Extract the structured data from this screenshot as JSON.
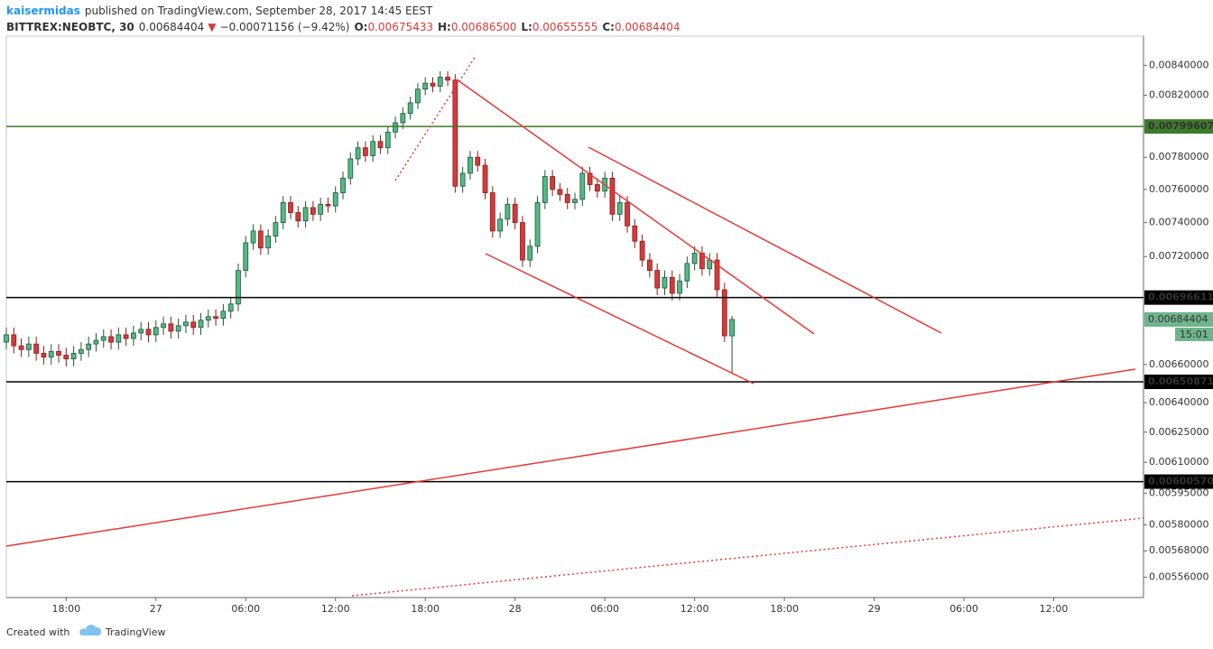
{
  "header": {
    "author": "kaisermidas",
    "published": "published on TradingView.com, September 28, 2017 14:45 EEST",
    "symbol": "BITTREX:NEOBTC, 30",
    "last": "0.00684404",
    "change": "−0.00071156 (−9.42%)",
    "o_label": "O:",
    "o": "0.00675433",
    "h_label": "H:",
    "h": "0.00686500",
    "l_label": "L:",
    "l": "0.00655555",
    "c_label": "C:",
    "c": "0.00684404"
  },
  "chart_data": {
    "type": "candlestick",
    "log_scale": true,
    "grid": false,
    "xlim": [
      0,
      152
    ],
    "xticks": [
      {
        "value": 8,
        "label": "18:00"
      },
      {
        "value": 20,
        "label": "27"
      },
      {
        "value": 32,
        "label": "06:00"
      },
      {
        "value": 44,
        "label": "12:00"
      },
      {
        "value": 56,
        "label": "18:00"
      },
      {
        "value": 68,
        "label": "28"
      },
      {
        "value": 80,
        "label": "06:00"
      },
      {
        "value": 92,
        "label": "12:00"
      },
      {
        "value": 104,
        "label": "18:00"
      },
      {
        "value": 116,
        "label": "29"
      },
      {
        "value": 128,
        "label": "06:00"
      },
      {
        "value": 140,
        "label": "12:00"
      }
    ],
    "ylim": [
      0.00547,
      0.0086
    ],
    "yticks": [
      {
        "value": 0.0084,
        "label": "0.00840000"
      },
      {
        "value": 0.0082,
        "label": "0.00820000"
      },
      {
        "value": 0.0078,
        "label": "0.00780000"
      },
      {
        "value": 0.0076,
        "label": "0.00760000"
      },
      {
        "value": 0.0074,
        "label": "0.00740000"
      },
      {
        "value": 0.0072,
        "label": "0.00720000"
      },
      {
        "value": 0.0066,
        "label": "0.00660000"
      },
      {
        "value": 0.0064,
        "label": "0.00640000"
      },
      {
        "value": 0.00625,
        "label": "0.00625000"
      },
      {
        "value": 0.0061,
        "label": "0.00610000"
      },
      {
        "value": 0.00595,
        "label": "0.00595000"
      },
      {
        "value": 0.0058,
        "label": "0.00580000"
      },
      {
        "value": 0.00568,
        "label": "0.00568000"
      },
      {
        "value": 0.00556,
        "label": "0.00556000"
      }
    ],
    "up_color": "#53b987",
    "down_color": "#d23c3c",
    "open": [
      0.00672,
      0.00676,
      0.0067,
      0.00668,
      0.00671,
      0.00666,
      0.00664,
      0.00667,
      0.00665,
      0.00663,
      0.00666,
      0.00668,
      0.00671,
      0.00673,
      0.00675,
      0.00672,
      0.00676,
      0.00674,
      0.00677,
      0.00679,
      0.00676,
      0.0068,
      0.00682,
      0.00678,
      0.00681,
      0.00683,
      0.0068,
      0.00684,
      0.00686,
      0.00685,
      0.00689,
      0.00693,
      0.00712,
      0.00728,
      0.00735,
      0.00725,
      0.00732,
      0.0074,
      0.00752,
      0.00746,
      0.00741,
      0.00749,
      0.00745,
      0.00751,
      0.0075,
      0.00758,
      0.00767,
      0.00779,
      0.00786,
      0.00781,
      0.0079,
      0.00786,
      0.00796,
      0.00802,
      0.00808,
      0.00815,
      0.00824,
      0.00828,
      0.00826,
      0.00832,
      0.0083,
      0.00762,
      0.0077,
      0.0078,
      0.00775,
      0.00758,
      0.00735,
      0.00742,
      0.00751,
      0.0074,
      0.00718,
      0.00726,
      0.00752,
      0.00768,
      0.0076,
      0.00757,
      0.00752,
      0.00754,
      0.0077,
      0.00763,
      0.00759,
      0.00767,
      0.00745,
      0.00752,
      0.00738,
      0.00729,
      0.00718,
      0.00712,
      0.00702,
      0.00708,
      0.00699,
      0.00706,
      0.00716,
      0.00722,
      0.00713,
      0.00718,
      0.00701,
      0.00675433
    ],
    "high": [
      0.0068,
      0.0068,
      0.00674,
      0.00675,
      0.00675,
      0.0067,
      0.00671,
      0.00671,
      0.00669,
      0.0067,
      0.00672,
      0.00675,
      0.00677,
      0.00679,
      0.00679,
      0.0068,
      0.0068,
      0.00681,
      0.00683,
      0.00683,
      0.00684,
      0.00686,
      0.00686,
      0.00685,
      0.00687,
      0.00687,
      0.00688,
      0.0069,
      0.0069,
      0.00693,
      0.00697,
      0.00716,
      0.00732,
      0.00739,
      0.00739,
      0.00736,
      0.00744,
      0.00756,
      0.00756,
      0.0075,
      0.00753,
      0.00753,
      0.00755,
      0.00755,
      0.00762,
      0.00771,
      0.00783,
      0.0079,
      0.0079,
      0.00794,
      0.00794,
      0.008,
      0.00806,
      0.00812,
      0.00819,
      0.00828,
      0.00832,
      0.00832,
      0.00836,
      0.00836,
      0.00834,
      0.00774,
      0.00784,
      0.00784,
      0.00779,
      0.00762,
      0.00746,
      0.00755,
      0.00755,
      0.00744,
      0.0073,
      0.00756,
      0.00772,
      0.00772,
      0.00764,
      0.00761,
      0.00758,
      0.00774,
      0.00774,
      0.00767,
      0.00771,
      0.00771,
      0.00756,
      0.00756,
      0.00742,
      0.00733,
      0.00722,
      0.00716,
      0.00712,
      0.00712,
      0.0071,
      0.0072,
      0.00726,
      0.00726,
      0.00722,
      0.00722,
      0.00705,
      0.006865
    ],
    "low": [
      0.00668,
      0.00666,
      0.00664,
      0.00664,
      0.00662,
      0.0066,
      0.0066,
      0.00661,
      0.00659,
      0.00659,
      0.00662,
      0.00664,
      0.00667,
      0.00669,
      0.00668,
      0.00668,
      0.0067,
      0.0067,
      0.00673,
      0.00672,
      0.00672,
      0.00676,
      0.00674,
      0.00674,
      0.00677,
      0.00676,
      0.00676,
      0.0068,
      0.00681,
      0.00681,
      0.00685,
      0.00689,
      0.00708,
      0.00724,
      0.00721,
      0.00721,
      0.00728,
      0.00736,
      0.00742,
      0.00737,
      0.00737,
      0.00741,
      0.00741,
      0.00746,
      0.00746,
      0.00754,
      0.00763,
      0.00775,
      0.00777,
      0.00777,
      0.00782,
      0.00782,
      0.00792,
      0.00798,
      0.00804,
      0.00811,
      0.0082,
      0.00822,
      0.00822,
      0.00826,
      0.00758,
      0.00758,
      0.00766,
      0.00771,
      0.00754,
      0.00731,
      0.00731,
      0.00738,
      0.00736,
      0.00714,
      0.00714,
      0.00722,
      0.00748,
      0.00756,
      0.00753,
      0.00748,
      0.00748,
      0.0075,
      0.00759,
      0.00755,
      0.00755,
      0.00741,
      0.00741,
      0.00734,
      0.00725,
      0.00714,
      0.00708,
      0.00698,
      0.00698,
      0.00695,
      0.00695,
      0.00702,
      0.00712,
      0.00709,
      0.00709,
      0.00697,
      0.00672,
      0.00655555
    ],
    "close": [
      0.00676,
      0.0067,
      0.00668,
      0.00671,
      0.00666,
      0.00664,
      0.00667,
      0.00665,
      0.00663,
      0.00666,
      0.00668,
      0.00671,
      0.00673,
      0.00675,
      0.00672,
      0.00676,
      0.00674,
      0.00677,
      0.00679,
      0.00676,
      0.0068,
      0.00682,
      0.00678,
      0.00681,
      0.00683,
      0.0068,
      0.00684,
      0.00686,
      0.00685,
      0.00689,
      0.00693,
      0.00712,
      0.00728,
      0.00735,
      0.00725,
      0.00732,
      0.0074,
      0.00752,
      0.00746,
      0.00741,
      0.00749,
      0.00745,
      0.00751,
      0.0075,
      0.00758,
      0.00767,
      0.00779,
      0.00786,
      0.00781,
      0.0079,
      0.00786,
      0.00796,
      0.00802,
      0.00808,
      0.00815,
      0.00824,
      0.00828,
      0.00826,
      0.00832,
      0.0083,
      0.00762,
      0.0077,
      0.0078,
      0.00775,
      0.00758,
      0.00735,
      0.00742,
      0.00751,
      0.0074,
      0.00718,
      0.00726,
      0.00752,
      0.00768,
      0.0076,
      0.00757,
      0.00752,
      0.00754,
      0.0077,
      0.00763,
      0.00759,
      0.00767,
      0.00745,
      0.00752,
      0.00738,
      0.00729,
      0.00718,
      0.00712,
      0.00702,
      0.00708,
      0.00699,
      0.00706,
      0.00716,
      0.00722,
      0.00713,
      0.00718,
      0.00701,
      0.00675433,
      0.00684404
    ],
    "levels": [
      {
        "price": 0.00799607,
        "color": "#3d7a2b"
      },
      {
        "price": 0.00696611,
        "color": "#000000"
      },
      {
        "price": 0.00650871,
        "color": "#000000"
      },
      {
        "price": {
          "value": 0.0060057,
          "label": "0.00600570"
        },
        "color": "#000000"
      }
    ],
    "last_price": 0.00684404,
    "last_color": "#6fb48d",
    "countdown": "15:01"
  },
  "footer": {
    "created": "Created with",
    "brand": "TradingView"
  }
}
